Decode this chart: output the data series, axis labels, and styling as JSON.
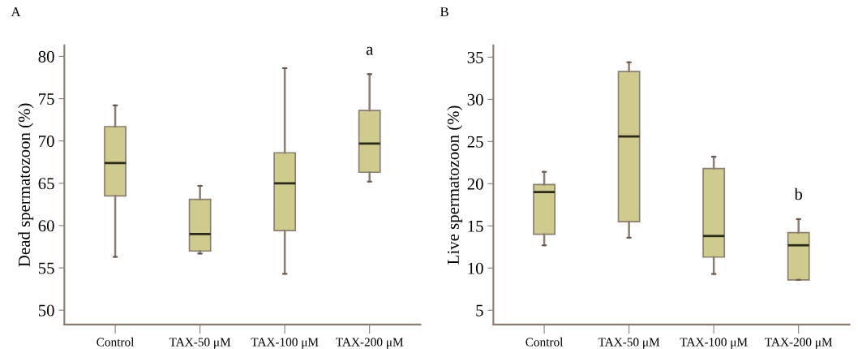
{
  "chart_data": [
    {
      "type": "box",
      "title": "A",
      "ylabel": "Dead spermatozoon (%)",
      "categories": [
        "Control",
        "TAX-50 μM",
        "TAX-100 μM",
        "TAX-200 μM"
      ],
      "color": "#cfcb8f",
      "boxes": [
        {
          "low": 56.3,
          "q1": 63.5,
          "median": 67.4,
          "q3": 71.7,
          "high": 74.2
        },
        {
          "low": 56.7,
          "q1": 57.0,
          "median": 59.0,
          "q3": 63.1,
          "high": 64.7
        },
        {
          "low": 54.3,
          "q1": 59.4,
          "median": 65.0,
          "q3": 68.6,
          "high": 78.6
        },
        {
          "low": 65.2,
          "q1": 66.3,
          "median": 69.7,
          "q3": 73.6,
          "high": 77.9
        }
      ],
      "ylim": [
        48.3,
        81.3
      ],
      "yticks": [
        50,
        55,
        60,
        65,
        70,
        75,
        80
      ],
      "grid": false,
      "annotations": [
        "a"
      ]
    },
    {
      "type": "box",
      "title": "B",
      "ylabel": "Live spermatozoon (%)",
      "categories": [
        "Control",
        "TAX-50 μM",
        "TAX-100 μM",
        "TAX-200 μM"
      ],
      "color": "#cfcb8f",
      "boxes": [
        {
          "low": 12.7,
          "q1": 14.0,
          "median": 19.0,
          "q3": 19.9,
          "high": 21.4
        },
        {
          "low": 13.6,
          "q1": 15.5,
          "median": 25.6,
          "q3": 33.3,
          "high": 34.4
        },
        {
          "low": 9.3,
          "q1": 11.3,
          "median": 13.8,
          "q3": 21.8,
          "high": 23.2
        },
        {
          "low": 8.6,
          "q1": 8.6,
          "median": 12.7,
          "q3": 14.2,
          "high": 15.8
        }
      ],
      "ylim": [
        3.3,
        36.4
      ],
      "yticks": [
        5,
        10,
        15,
        20,
        25,
        30,
        35
      ],
      "grid": false,
      "annotations": [
        "b"
      ]
    }
  ]
}
